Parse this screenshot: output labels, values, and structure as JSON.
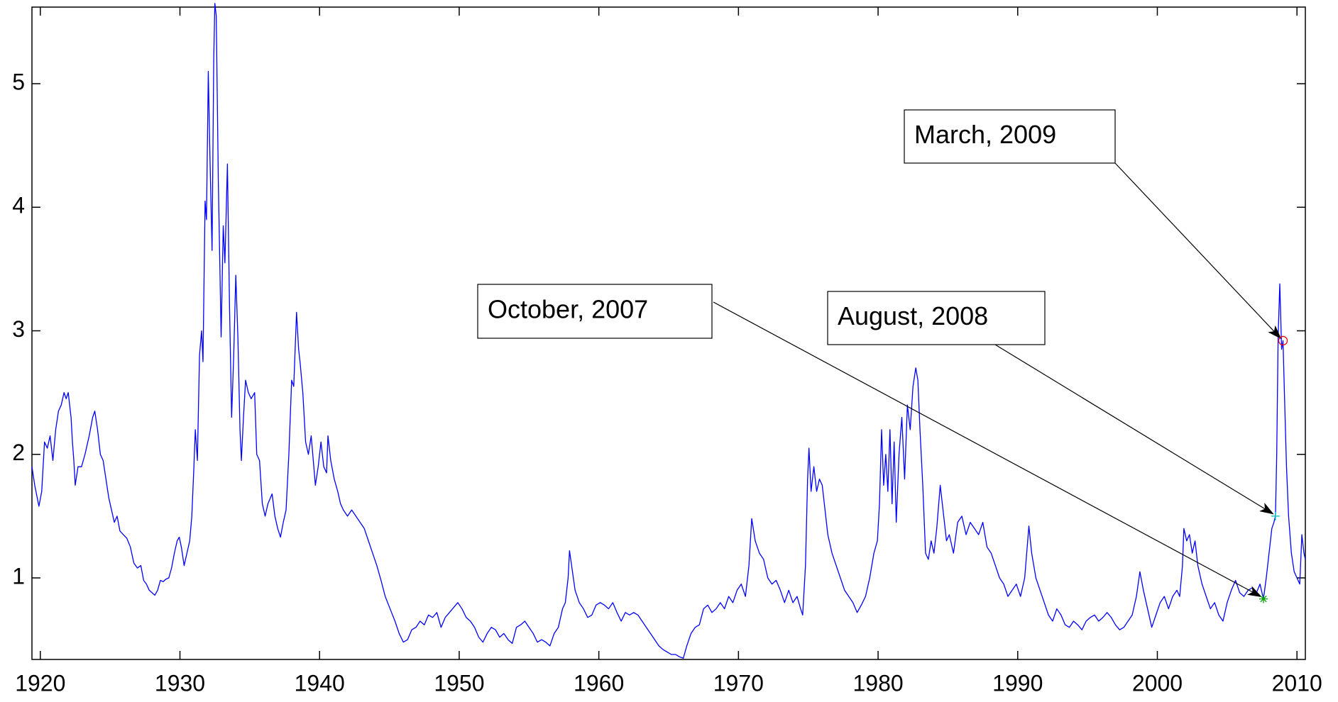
{
  "chart_data": {
    "type": "line",
    "xlim": [
      1919.4,
      2010.6
    ],
    "ylim": [
      0.34,
      5.62
    ],
    "xticks": [
      1920,
      1930,
      1940,
      1950,
      1960,
      1970,
      1980,
      1990,
      2000,
      2010
    ],
    "yticks": [
      1,
      2,
      3,
      4,
      5
    ],
    "grid": false,
    "x": [
      1919.4,
      1919.6,
      1919.9,
      1920.1,
      1920.3,
      1920.5,
      1920.7,
      1920.9,
      1921.1,
      1921.3,
      1921.5,
      1921.7,
      1921.85,
      1922.0,
      1922.2,
      1922.3,
      1922.4,
      1922.5,
      1922.7,
      1922.95,
      1923.2,
      1923.5,
      1923.75,
      1923.9,
      1924.1,
      1924.3,
      1924.5,
      1924.7,
      1924.9,
      1925.1,
      1925.3,
      1925.5,
      1925.7,
      1925.95,
      1926.2,
      1926.45,
      1926.7,
      1926.95,
      1927.2,
      1927.4,
      1927.6,
      1927.8,
      1928.0,
      1928.2,
      1928.4,
      1928.6,
      1928.8,
      1929.0,
      1929.2,
      1929.4,
      1929.6,
      1929.8,
      1929.95,
      1930.1,
      1930.3,
      1930.5,
      1930.7,
      1930.85,
      1931.0,
      1931.1,
      1931.25,
      1931.4,
      1931.55,
      1931.65,
      1931.8,
      1931.9,
      1932.03,
      1932.15,
      1932.3,
      1932.42,
      1932.5,
      1932.6,
      1932.75,
      1932.95,
      1933.1,
      1933.22,
      1933.4,
      1933.55,
      1933.7,
      1933.85,
      1934.0,
      1934.15,
      1934.3,
      1934.4,
      1934.55,
      1934.7,
      1934.9,
      1935.1,
      1935.35,
      1935.5,
      1935.7,
      1935.9,
      1936.1,
      1936.3,
      1936.6,
      1936.8,
      1937.0,
      1937.2,
      1937.4,
      1937.6,
      1937.8,
      1938.0,
      1938.15,
      1938.35,
      1938.5,
      1938.6,
      1938.8,
      1939.0,
      1939.2,
      1939.4,
      1939.55,
      1939.7,
      1939.9,
      1940.1,
      1940.3,
      1940.5,
      1940.6,
      1940.8,
      1941.05,
      1941.3,
      1941.5,
      1941.7,
      1942.0,
      1942.3,
      1942.6,
      1942.9,
      1943.2,
      1943.5,
      1943.8,
      1944.1,
      1944.4,
      1944.7,
      1945.05,
      1945.4,
      1945.7,
      1946.0,
      1946.3,
      1946.6,
      1946.9,
      1947.2,
      1947.5,
      1947.8,
      1948.1,
      1948.4,
      1948.7,
      1949.0,
      1949.3,
      1949.6,
      1949.9,
      1950.2,
      1950.5,
      1950.8,
      1951.1,
      1951.4,
      1951.7,
      1952.0,
      1952.3,
      1952.6,
      1952.9,
      1953.2,
      1953.5,
      1953.8,
      1954.1,
      1954.4,
      1954.7,
      1955.0,
      1955.3,
      1955.6,
      1955.9,
      1956.2,
      1956.5,
      1956.8,
      1957.1,
      1957.4,
      1957.6,
      1957.8,
      1957.9,
      1958.05,
      1958.3,
      1958.6,
      1958.9,
      1959.2,
      1959.5,
      1959.8,
      1960.1,
      1960.4,
      1960.7,
      1961.0,
      1961.3,
      1961.6,
      1961.9,
      1962.2,
      1962.5,
      1962.8,
      1963.1,
      1963.4,
      1963.7,
      1964.0,
      1964.3,
      1964.6,
      1964.9,
      1965.2,
      1965.5,
      1965.8,
      1966.05,
      1966.3,
      1966.6,
      1966.9,
      1967.2,
      1967.5,
      1967.8,
      1968.1,
      1968.4,
      1968.7,
      1969.0,
      1969.3,
      1969.6,
      1969.9,
      1970.2,
      1970.5,
      1970.75,
      1970.95,
      1971.2,
      1971.5,
      1971.8,
      1972.1,
      1972.4,
      1972.7,
      1973.0,
      1973.3,
      1973.6,
      1973.9,
      1974.2,
      1974.45,
      1974.6,
      1974.8,
      1974.95,
      1975.05,
      1975.2,
      1975.4,
      1975.6,
      1975.8,
      1976.0,
      1976.2,
      1976.4,
      1976.7,
      1977.0,
      1977.3,
      1977.6,
      1977.9,
      1978.2,
      1978.5,
      1978.8,
      1979.1,
      1979.4,
      1979.7,
      1979.95,
      1980.1,
      1980.25,
      1980.4,
      1980.55,
      1980.7,
      1980.85,
      1981.0,
      1981.15,
      1981.3,
      1981.5,
      1981.7,
      1981.9,
      1982.1,
      1982.3,
      1982.5,
      1982.7,
      1982.85,
      1983.0,
      1983.2,
      1983.4,
      1983.6,
      1983.8,
      1984.0,
      1984.2,
      1984.45,
      1984.7,
      1984.9,
      1985.1,
      1985.4,
      1985.7,
      1986.0,
      1986.3,
      1986.6,
      1986.9,
      1987.2,
      1987.5,
      1987.8,
      1988.1,
      1988.4,
      1988.7,
      1989.0,
      1989.3,
      1989.6,
      1989.9,
      1990.2,
      1990.5,
      1990.8,
      1991.0,
      1991.3,
      1991.6,
      1991.9,
      1992.2,
      1992.5,
      1992.8,
      1993.1,
      1993.4,
      1993.7,
      1994.0,
      1994.3,
      1994.6,
      1994.9,
      1995.2,
      1995.5,
      1995.8,
      1996.1,
      1996.4,
      1996.7,
      1997.0,
      1997.3,
      1997.6,
      1997.9,
      1998.2,
      1998.5,
      1998.75,
      1999.0,
      1999.3,
      1999.6,
      1999.9,
      2000.2,
      2000.5,
      2000.8,
      2001.1,
      2001.4,
      2001.6,
      2001.8,
      2001.9,
      2002.1,
      2002.3,
      2002.5,
      2002.7,
      2002.9,
      2003.2,
      2003.5,
      2003.8,
      2004.1,
      2004.4,
      2004.7,
      2005.0,
      2005.3,
      2005.6,
      2005.9,
      2006.2,
      2006.5,
      2006.8,
      2007.1,
      2007.35,
      2007.6,
      2007.8,
      2008.0,
      2008.2,
      2008.35,
      2008.46,
      2008.55,
      2008.65,
      2008.77,
      2008.9,
      2009.0,
      2009.1,
      2009.25,
      2009.4,
      2009.6,
      2009.8,
      2010.0,
      2010.2,
      2010.35,
      2010.5,
      2010.6
    ],
    "series": [
      {
        "color": "#0000ff",
        "values": [
          1.9,
          1.75,
          1.58,
          1.7,
          2.1,
          2.05,
          2.15,
          1.95,
          2.2,
          2.35,
          2.4,
          2.5,
          2.45,
          2.5,
          2.3,
          2.1,
          1.95,
          1.75,
          1.9,
          1.9,
          2.0,
          2.15,
          2.3,
          2.35,
          2.2,
          2.0,
          1.95,
          1.8,
          1.65,
          1.55,
          1.45,
          1.5,
          1.38,
          1.35,
          1.32,
          1.25,
          1.12,
          1.08,
          1.1,
          0.98,
          0.95,
          0.9,
          0.88,
          0.86,
          0.9,
          0.98,
          0.97,
          0.99,
          1.0,
          1.08,
          1.2,
          1.3,
          1.33,
          1.25,
          1.1,
          1.2,
          1.3,
          1.5,
          1.9,
          2.2,
          1.95,
          2.8,
          3.0,
          2.75,
          4.05,
          3.9,
          5.1,
          4.4,
          3.65,
          5.2,
          5.65,
          5.55,
          4.2,
          2.95,
          3.85,
          3.55,
          4.35,
          3.2,
          2.3,
          2.8,
          3.45,
          2.95,
          2.2,
          1.95,
          2.3,
          2.6,
          2.5,
          2.45,
          2.5,
          2.0,
          1.95,
          1.6,
          1.5,
          1.6,
          1.68,
          1.5,
          1.4,
          1.33,
          1.45,
          1.55,
          2.0,
          2.6,
          2.55,
          3.15,
          2.85,
          2.75,
          2.5,
          2.1,
          2.0,
          2.15,
          1.95,
          1.75,
          1.9,
          2.1,
          1.9,
          1.85,
          2.15,
          1.95,
          1.8,
          1.7,
          1.6,
          1.55,
          1.5,
          1.55,
          1.5,
          1.45,
          1.4,
          1.3,
          1.2,
          1.1,
          0.98,
          0.85,
          0.75,
          0.65,
          0.55,
          0.48,
          0.5,
          0.58,
          0.6,
          0.65,
          0.62,
          0.7,
          0.68,
          0.72,
          0.6,
          0.68,
          0.72,
          0.76,
          0.8,
          0.75,
          0.68,
          0.65,
          0.6,
          0.52,
          0.48,
          0.55,
          0.6,
          0.58,
          0.52,
          0.55,
          0.5,
          0.47,
          0.6,
          0.62,
          0.65,
          0.6,
          0.55,
          0.48,
          0.5,
          0.48,
          0.45,
          0.55,
          0.6,
          0.75,
          0.8,
          1.0,
          1.22,
          1.1,
          0.9,
          0.8,
          0.75,
          0.68,
          0.7,
          0.78,
          0.8,
          0.78,
          0.75,
          0.8,
          0.72,
          0.65,
          0.72,
          0.7,
          0.72,
          0.7,
          0.65,
          0.6,
          0.55,
          0.5,
          0.45,
          0.42,
          0.4,
          0.38,
          0.38,
          0.36,
          0.35,
          0.45,
          0.55,
          0.6,
          0.62,
          0.75,
          0.78,
          0.72,
          0.75,
          0.8,
          0.75,
          0.85,
          0.8,
          0.9,
          0.95,
          0.85,
          1.1,
          1.48,
          1.3,
          1.2,
          1.15,
          1.0,
          0.95,
          0.98,
          0.9,
          0.8,
          0.9,
          0.8,
          0.85,
          0.75,
          0.7,
          1.1,
          1.8,
          2.05,
          1.7,
          1.9,
          1.7,
          1.8,
          1.75,
          1.55,
          1.35,
          1.2,
          1.1,
          1.0,
          0.9,
          0.85,
          0.8,
          0.72,
          0.78,
          0.85,
          1.0,
          1.2,
          1.3,
          1.6,
          2.2,
          1.75,
          2.0,
          1.7,
          2.2,
          1.6,
          2.1,
          1.45,
          2.0,
          2.3,
          1.8,
          2.4,
          2.2,
          2.55,
          2.7,
          2.6,
          2.2,
          1.75,
          1.2,
          1.15,
          1.3,
          1.2,
          1.4,
          1.75,
          1.5,
          1.3,
          1.35,
          1.2,
          1.45,
          1.5,
          1.35,
          1.45,
          1.4,
          1.35,
          1.45,
          1.25,
          1.2,
          1.1,
          1.0,
          0.95,
          0.85,
          0.9,
          0.95,
          0.85,
          1.0,
          1.42,
          1.2,
          1.0,
          0.9,
          0.8,
          0.7,
          0.65,
          0.75,
          0.7,
          0.62,
          0.6,
          0.65,
          0.62,
          0.58,
          0.65,
          0.68,
          0.7,
          0.65,
          0.68,
          0.72,
          0.68,
          0.62,
          0.58,
          0.6,
          0.65,
          0.7,
          0.85,
          1.05,
          0.9,
          0.75,
          0.6,
          0.7,
          0.8,
          0.85,
          0.75,
          0.85,
          0.9,
          0.85,
          1.1,
          1.4,
          1.3,
          1.35,
          1.2,
          1.3,
          1.1,
          0.95,
          0.85,
          0.75,
          0.8,
          0.7,
          0.65,
          0.8,
          0.9,
          0.98,
          0.88,
          0.85,
          0.9,
          0.92,
          0.88,
          0.95,
          0.83,
          1.0,
          1.2,
          1.4,
          1.45,
          1.5,
          2.0,
          2.95,
          3.38,
          2.85,
          2.92,
          2.5,
          1.9,
          1.5,
          1.2,
          1.05,
          1.0,
          0.95,
          1.35,
          1.2,
          1.15
        ]
      }
    ],
    "annotations": [
      {
        "text": "March, 2009",
        "x": 2009.0,
        "y": 2.92,
        "marker": "o",
        "color": "#ff0000"
      },
      {
        "text": "August, 2008",
        "x": 2008.46,
        "y": 1.5,
        "marker": "+",
        "color": "#00bfbf"
      },
      {
        "text": "October, 2007",
        "x": 2007.6,
        "y": 0.83,
        "marker": "*",
        "color": "#00a000"
      }
    ]
  }
}
